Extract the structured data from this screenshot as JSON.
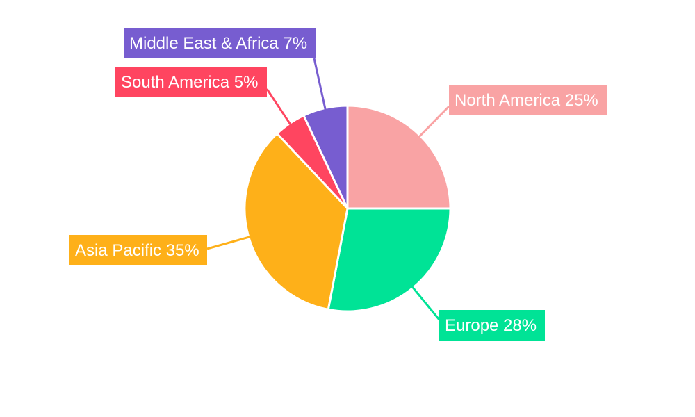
{
  "chart_data": {
    "type": "pie",
    "title": "",
    "start_angle_deg": 0,
    "direction": "clockwise",
    "legend": "none",
    "slices": [
      {
        "label": "North America",
        "value": 25,
        "text": "North America 25%",
        "color": "#F9A3A4"
      },
      {
        "label": "Europe",
        "value": 28,
        "text": "Europe 28%",
        "color": "#00E396"
      },
      {
        "label": "Asia Pacific",
        "value": 35,
        "text": "Asia Pacific 35%",
        "color": "#FEB019"
      },
      {
        "label": "South America",
        "value": 5,
        "text": "South America 5%",
        "color": "#FF4560"
      },
      {
        "label": "Middle East & Africa",
        "value": 7,
        "text": "Middle East & Africa 7%",
        "color": "#775DD0"
      }
    ]
  }
}
